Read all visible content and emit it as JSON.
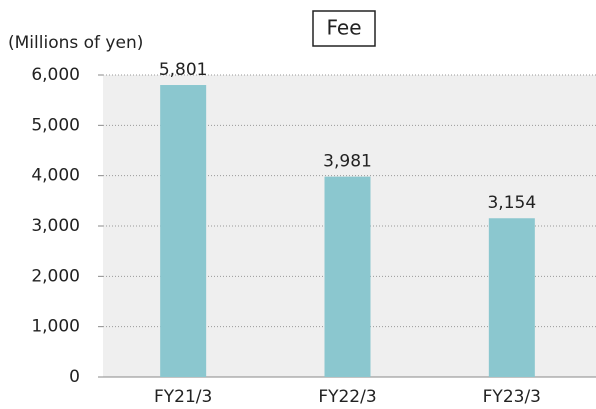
{
  "chart_data": {
    "type": "bar",
    "title": "Fee",
    "y_axis_label": "(Millions of yen)",
    "categories": [
      "FY21/3",
      "FY22/3",
      "FY23/3"
    ],
    "values": [
      5801,
      3981,
      3154
    ],
    "value_labels": [
      "5,801",
      "3,981",
      "3,154"
    ],
    "color": "#8bc7cf",
    "ylim": [
      0,
      6000
    ],
    "yticks": [
      0,
      {
        "value": 1000,
        "label": "1,000"
      },
      {
        "value": 2000,
        "label": "2,000"
      },
      {
        "value": 3000,
        "label": "3,000"
      },
      {
        "value": 4000,
        "label": "4,000"
      },
      {
        "value": 5000,
        "label": "5,000"
      },
      {
        "value": 6000,
        "label": "6,000"
      }
    ],
    "grid": true
  }
}
